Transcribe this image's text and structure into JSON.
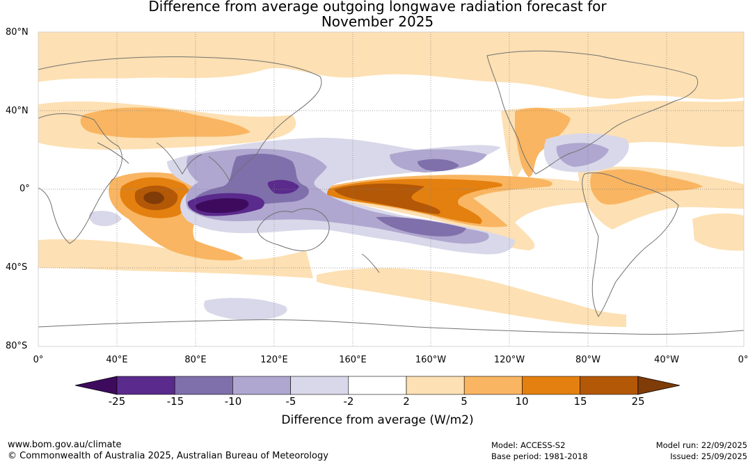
{
  "title_line1": "Difference from average outgoing longwave radiation forecast for",
  "title_line2": "November 2025",
  "lat_labels": [
    "80°N",
    "40°N",
    "0°",
    "40°S",
    "80°S"
  ],
  "lon_labels": [
    "0°",
    "40°E",
    "80°E",
    "120°E",
    "160°E",
    "160°W",
    "120°W",
    "80°W",
    "40°W",
    "0°"
  ],
  "colorbar": {
    "ticks": [
      "-25",
      "-15",
      "-10",
      "-5",
      "-2",
      "2",
      "5",
      "10",
      "15",
      "25"
    ],
    "label": "Difference from average (W/m2)",
    "colors": [
      "#3d0a5e",
      "#5a2a8c",
      "#7f6fab",
      "#afa7cf",
      "#d9d8ea",
      "#ffffff",
      "#fde0b3",
      "#f9b561",
      "#e4800f",
      "#b35806",
      "#7f3b08"
    ]
  },
  "footer": {
    "website": "www.bom.gov.au/climate",
    "copyright": "© Commonwealth of Australia 2025, Australian Bureau of Meteorology",
    "model": "Model: ACCESS-S2",
    "base_period": "Base period: 1981-2018",
    "model_run": "Model run: 22/09/2025",
    "issued": "Issued: 25/09/2025"
  }
}
